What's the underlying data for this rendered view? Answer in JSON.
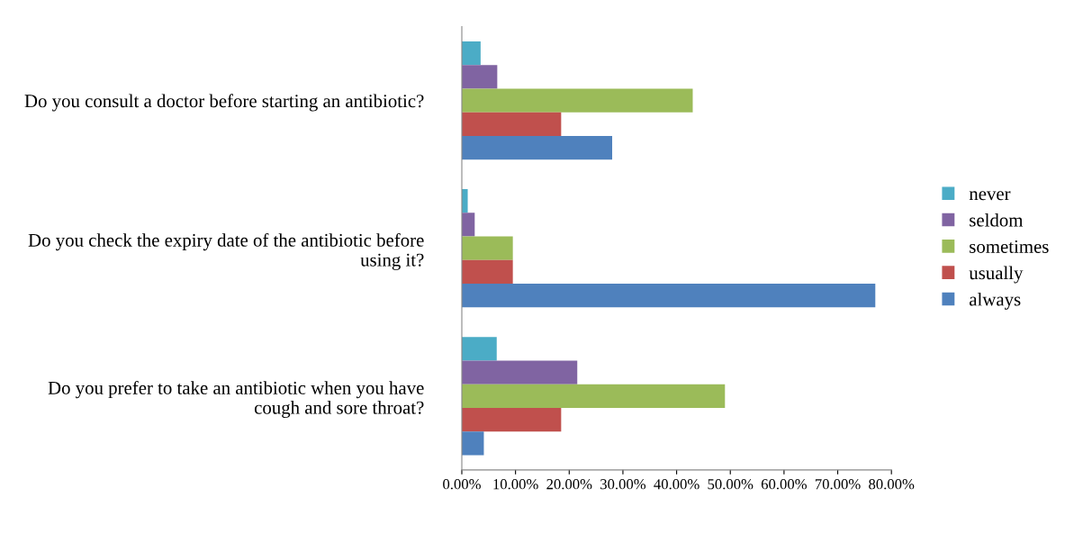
{
  "chart_data": {
    "type": "bar",
    "orientation": "horizontal",
    "categories": [
      "Do you consult a doctor before starting an antibiotic?",
      "Do you check the expiry date of the antibiotic before using it?",
      "Do you prefer to take an antibiotic when you have cough and sore throat?"
    ],
    "series": [
      {
        "name": "never",
        "color": "#4bacc6",
        "values": [
          3.5,
          1.1,
          6.5
        ]
      },
      {
        "name": "seldom",
        "color": "#8064a2",
        "values": [
          6.6,
          2.4,
          21.5
        ]
      },
      {
        "name": "sometimes",
        "color": "#9bbb59",
        "values": [
          43,
          9.5,
          49
        ]
      },
      {
        "name": "usually",
        "color": "#c0504d",
        "values": [
          18.5,
          9.5,
          18.5
        ]
      },
      {
        "name": "always",
        "color": "#4f81bd",
        "values": [
          28,
          77,
          4.1
        ]
      }
    ],
    "xlim": [
      0,
      80
    ],
    "xticks": [
      {
        "value": 0,
        "label": "0.00%"
      },
      {
        "value": 10,
        "label": "10.00%"
      },
      {
        "value": 20,
        "label": "20.00%"
      },
      {
        "value": 30,
        "label": "30.00%"
      },
      {
        "value": 40,
        "label": "40.00%"
      },
      {
        "value": 50,
        "label": "50.00%"
      },
      {
        "value": 60,
        "label": "60.00%"
      },
      {
        "value": 70,
        "label": "70.00%"
      },
      {
        "value": 80,
        "label": "80.00%"
      }
    ],
    "legend": "right",
    "grid": false
  }
}
